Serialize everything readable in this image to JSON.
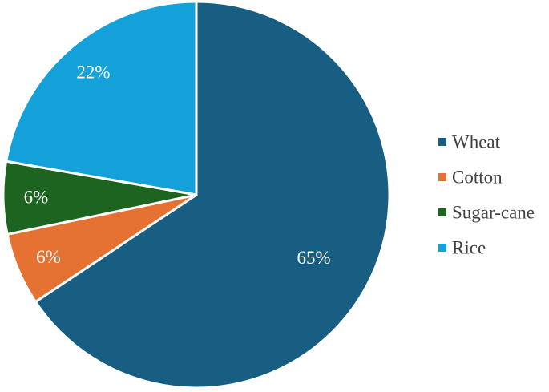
{
  "chart_data": {
    "type": "pie",
    "title": "",
    "slices": [
      {
        "label": "Wheat",
        "value": 65,
        "display": "65%",
        "color": "#175e82"
      },
      {
        "label": "Cotton",
        "value": 6,
        "display": "6%",
        "color": "#e57133"
      },
      {
        "label": "Sugar-cane",
        "value": 6,
        "display": "6%",
        "color": "#1e6421"
      },
      {
        "label": "Rice",
        "value": 22,
        "display": "22%",
        "color": "#14a0d9"
      }
    ],
    "start_angle_deg": 0,
    "direction": "clockwise",
    "legend_position": "right",
    "data_labels": true
  }
}
